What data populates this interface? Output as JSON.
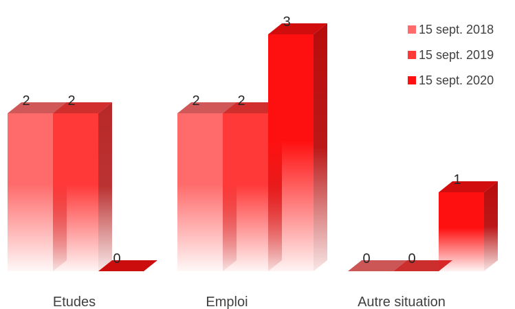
{
  "chart_data": {
    "type": "bar",
    "style": "3d-clustered-column",
    "categories": [
      "Etudes",
      "Emploi",
      "Autre situation"
    ],
    "series": [
      {
        "name": "15 sept. 2018",
        "values": [
          2,
          2,
          0
        ],
        "color": "#ff6b6b"
      },
      {
        "name": "15 sept. 2019",
        "values": [
          2,
          2,
          0
        ],
        "color": "#ff3838"
      },
      {
        "name": "15 sept. 2020",
        "values": [
          0,
          3,
          1
        ],
        "color": "#ff1010"
      }
    ],
    "ylim": [
      0,
      3
    ],
    "grid": false,
    "legend_position": "top-right",
    "data_labels": true
  }
}
